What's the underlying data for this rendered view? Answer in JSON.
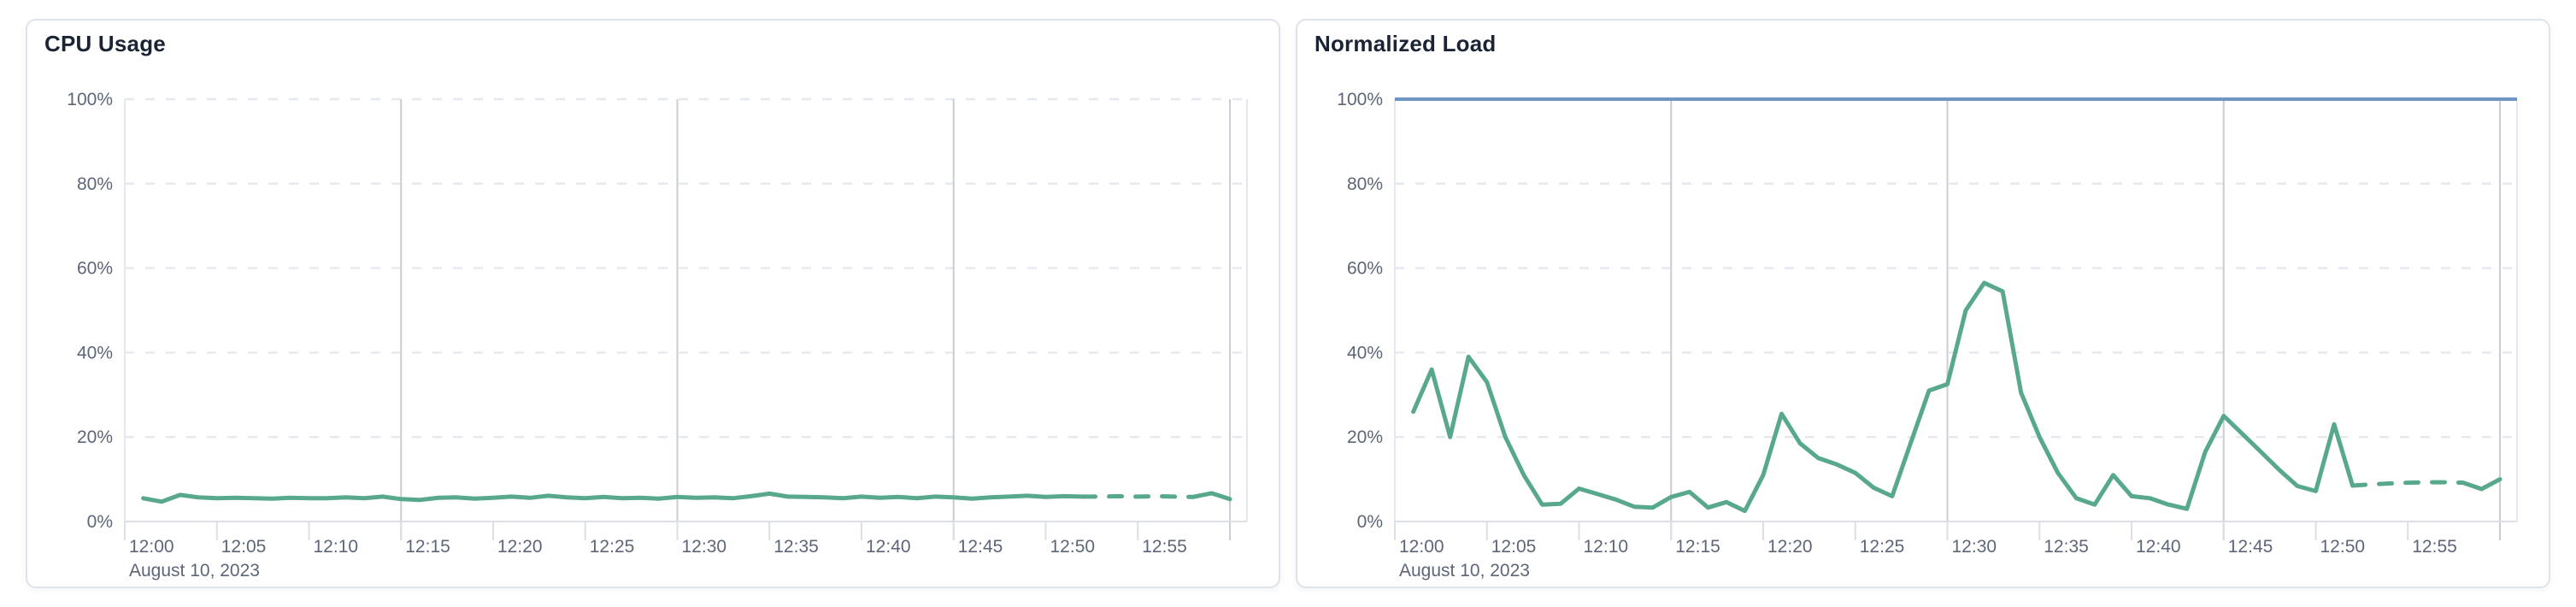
{
  "page": {
    "background": "#ffffff"
  },
  "colors": {
    "series_green": "#58a88b",
    "limit_blue": "#7095c3",
    "major_gridline": "#c9cdd4",
    "minor_gridline": "#e6e8f0",
    "axis_line": "#dcdfe6",
    "axis_label": "#5d6678",
    "title_text": "#1b2434",
    "card_border": "#dfe3ea",
    "card_background": "#ffffff"
  },
  "chart_data": [
    {
      "type": "line",
      "title": "CPU Usage",
      "date_label": "August 10, 2023",
      "x_tick_labels": [
        "12:00",
        "12:05",
        "12:10",
        "12:15",
        "12:20",
        "12:25",
        "12:30",
        "12:35",
        "12:40",
        "12:45",
        "12:50",
        "12:55"
      ],
      "x_tick_minutes": [
        0,
        5,
        10,
        15,
        20,
        25,
        30,
        35,
        40,
        45,
        50,
        55
      ],
      "major_grid_minutes": [
        15,
        30,
        45,
        60
      ],
      "x_range_minutes": [
        0,
        60
      ],
      "y_tick_labels": [
        "100%",
        "80%",
        "60%",
        "40%",
        "20%",
        "0%"
      ],
      "y_tick_values": [
        100,
        80,
        60,
        40,
        20,
        0
      ],
      "ylim": [
        0,
        100
      ],
      "grid": "dashed-horizontal",
      "legend": "none",
      "top_gridline_dashed": true,
      "limit_line": null,
      "series": [
        {
          "name": "cpu-usage",
          "color": "#58a88b",
          "start_minute": 1,
          "interval_minutes": 1,
          "dash_from_minute": 52,
          "dash_to_minute": 58,
          "values": [
            5.5,
            4.7,
            6.3,
            5.7,
            5.5,
            5.6,
            5.5,
            5.4,
            5.6,
            5.5,
            5.5,
            5.7,
            5.5,
            5.9,
            5.3,
            5.1,
            5.6,
            5.7,
            5.4,
            5.6,
            5.9,
            5.6,
            6.1,
            5.7,
            5.5,
            5.8,
            5.5,
            5.6,
            5.4,
            5.8,
            5.6,
            5.7,
            5.5,
            6.0,
            6.6,
            5.9,
            5.8,
            5.7,
            5.5,
            5.9,
            5.6,
            5.8,
            5.5,
            5.9,
            5.7,
            5.4,
            5.7,
            5.9,
            6.1,
            5.8,
            6.0,
            5.9,
            5.9,
            6.0,
            5.9,
            6.0,
            5.9,
            5.8,
            6.7,
            5.3
          ]
        }
      ]
    },
    {
      "type": "line",
      "title": "Normalized Load",
      "date_label": "August 10, 2023",
      "x_tick_labels": [
        "12:00",
        "12:05",
        "12:10",
        "12:15",
        "12:20",
        "12:25",
        "12:30",
        "12:35",
        "12:40",
        "12:45",
        "12:50",
        "12:55"
      ],
      "x_tick_minutes": [
        0,
        5,
        10,
        15,
        20,
        25,
        30,
        35,
        40,
        45,
        50,
        55
      ],
      "major_grid_minutes": [
        15,
        30,
        45,
        60
      ],
      "x_range_minutes": [
        0,
        60
      ],
      "y_tick_labels": [
        "100%",
        "80%",
        "60%",
        "40%",
        "20%",
        "0%"
      ],
      "y_tick_values": [
        100,
        80,
        60,
        40,
        20,
        0
      ],
      "ylim": [
        0,
        100
      ],
      "grid": "dashed-horizontal",
      "legend": "none",
      "top_gridline_dashed": false,
      "limit_line": {
        "value": 100,
        "color": "#7095c3"
      },
      "series": [
        {
          "name": "normalized-load",
          "color": "#58a88b",
          "start_minute": 1,
          "interval_minutes": 1,
          "dash_from_minute": 52,
          "dash_to_minute": 58,
          "values": [
            26,
            36,
            20,
            39,
            33,
            20,
            11,
            4,
            4.2,
            7.8,
            6.5,
            5.2,
            3.5,
            3.3,
            5.8,
            7.0,
            3.3,
            4.6,
            2.5,
            11,
            25.5,
            18.5,
            15,
            13.5,
            11.5,
            8,
            6,
            18.5,
            31,
            32.5,
            50,
            56.5,
            54.5,
            30.5,
            20,
            11.5,
            5.5,
            4,
            11,
            6,
            5.5,
            4,
            3,
            16.5,
            25,
            20.8,
            16.6,
            12.3,
            8.4,
            7.2,
            23,
            8.5,
            8.8,
            9.0,
            9.2,
            9.3,
            9.3,
            9.2,
            7.7,
            10
          ]
        }
      ]
    }
  ]
}
